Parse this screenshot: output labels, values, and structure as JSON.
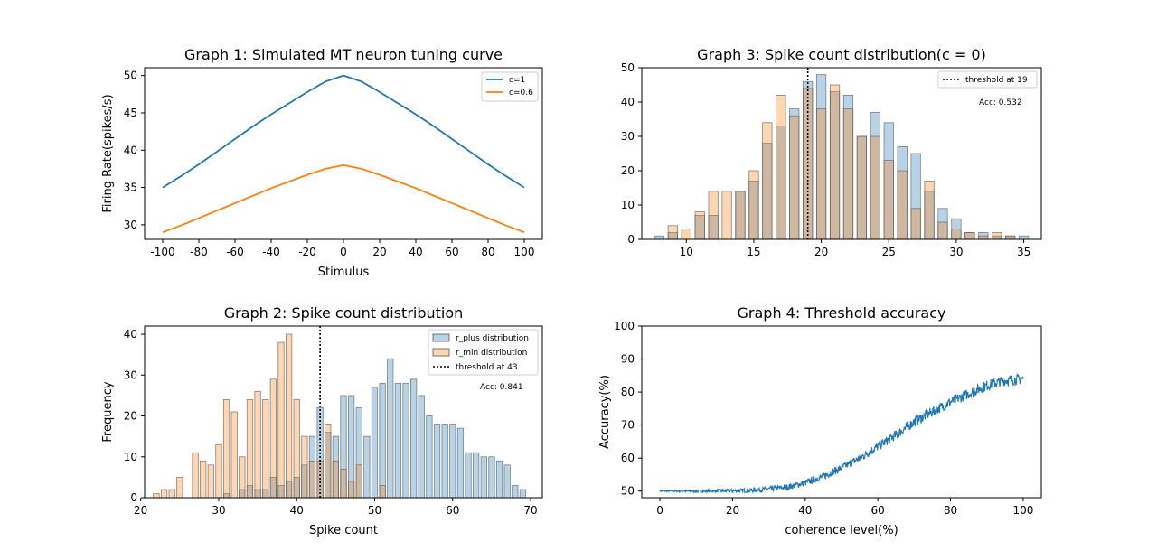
{
  "chart_data": [
    {
      "id": "g1",
      "type": "line",
      "title": "Graph 1: Simulated MT neuron tuning curve",
      "xlabel": "Stimulus",
      "ylabel": "Firing Rate(spikes/s)",
      "xlim": [
        -110,
        110
      ],
      "ylim": [
        28.05,
        51.05
      ],
      "xticks": [
        -100,
        -80,
        -60,
        -40,
        -20,
        0,
        20,
        40,
        60,
        80,
        100
      ],
      "yticks": [
        30,
        35,
        40,
        45,
        50
      ],
      "grid": false,
      "legend_placement": "top-right",
      "series": [
        {
          "name": "c=1",
          "color": "#1f77b4",
          "x": [
            -100,
            -90,
            -80,
            -70,
            -60,
            -50,
            -40,
            -30,
            -20,
            -10,
            0,
            10,
            20,
            30,
            40,
            50,
            60,
            70,
            80,
            90,
            100
          ],
          "y": [
            35.0,
            36.5,
            38.1,
            39.8,
            41.5,
            43.2,
            44.8,
            46.3,
            47.8,
            49.2,
            50.0,
            49.2,
            47.8,
            46.3,
            44.8,
            43.2,
            41.5,
            39.8,
            38.1,
            36.5,
            35.0
          ]
        },
        {
          "name": "c=0.6",
          "color": "#ff7f0e",
          "x": [
            -100,
            -90,
            -80,
            -70,
            -60,
            -50,
            -40,
            -30,
            -20,
            -10,
            0,
            10,
            20,
            30,
            40,
            50,
            60,
            70,
            80,
            90,
            100
          ],
          "y": [
            29.0,
            29.9,
            30.9,
            31.9,
            32.9,
            33.9,
            34.9,
            35.8,
            36.7,
            37.5,
            38.0,
            37.5,
            36.7,
            35.8,
            34.9,
            33.9,
            32.9,
            31.9,
            30.9,
            29.9,
            29.0
          ]
        }
      ]
    },
    {
      "id": "g3",
      "type": "bar",
      "title": "Graph 3: Spike count distribution(c = 0)",
      "xlabel": "",
      "ylabel": "",
      "xlim": [
        6.7,
        36.3
      ],
      "ylim": [
        0,
        50
      ],
      "xticks": [
        10,
        15,
        20,
        25,
        30,
        35
      ],
      "yticks": [
        0,
        10,
        20,
        30,
        40,
        50
      ],
      "bar_width": 0.7,
      "legend_placement": "top-right",
      "threshold": 19,
      "threshold_label": "threshold at 19",
      "accuracy_label": "Acc: 0.532",
      "series": [
        {
          "name": "",
          "color": "#1f77b4",
          "x": [
            8,
            9,
            11,
            12,
            14,
            15,
            16,
            17,
            18,
            19,
            20,
            21,
            22,
            23,
            24,
            25,
            26,
            27,
            28,
            29,
            30,
            31,
            32,
            33,
            34,
            35
          ],
          "y": [
            1,
            2,
            7,
            7,
            14,
            17,
            28,
            33,
            38,
            46,
            48,
            43,
            42,
            30,
            37,
            34,
            27,
            25,
            14,
            9,
            6,
            2,
            2,
            1,
            1,
            1
          ]
        },
        {
          "name": "",
          "color": "#ff7f0e",
          "x": [
            9,
            10,
            11,
            12,
            13,
            14,
            15,
            16,
            17,
            18,
            19,
            20,
            21,
            22,
            23,
            24,
            25,
            26,
            27,
            28,
            29,
            30,
            31,
            32,
            33,
            34
          ],
          "y": [
            4,
            3,
            8,
            14,
            14,
            14,
            20,
            34,
            42,
            36,
            44,
            38,
            45,
            38,
            30,
            30,
            23,
            20,
            9,
            17,
            5,
            3,
            2,
            1,
            2,
            1
          ]
        }
      ]
    },
    {
      "id": "g2",
      "type": "bar",
      "title": "Graph 2: Spike count distribution",
      "xlabel": "Spike count",
      "ylabel": "Frequency",
      "xlim": [
        20.5,
        71.5
      ],
      "ylim": [
        0,
        42
      ],
      "xticks": [
        20,
        30,
        40,
        50,
        60,
        70
      ],
      "yticks": [
        0,
        10,
        20,
        30,
        40
      ],
      "bar_width": 0.75,
      "legend_placement": "top-right",
      "threshold": 43,
      "threshold_label": "threshold at 43",
      "accuracy_label": "Acc: 0.841",
      "series": [
        {
          "name": "r_plus distribution",
          "color": "#1f77b4",
          "x": [
            31,
            33,
            34,
            35,
            36,
            37,
            38,
            39,
            40,
            41,
            42,
            43,
            44,
            45,
            46,
            47,
            48,
            49,
            50,
            51,
            52,
            53,
            54,
            55,
            56,
            57,
            58,
            59,
            60,
            61,
            62,
            63,
            64,
            65,
            66,
            67,
            68,
            69
          ],
          "y": [
            1,
            2,
            3,
            2,
            2,
            5,
            3,
            4,
            5,
            8,
            15,
            22,
            16,
            15,
            25,
            25,
            22,
            15,
            27,
            28,
            34,
            28,
            28,
            29,
            25,
            20,
            18,
            18,
            18,
            17,
            11,
            11,
            10,
            10,
            9,
            8,
            3,
            2
          ]
        },
        {
          "name": "r_min distribution",
          "color": "#ff7f0e",
          "x": [
            22,
            23,
            24,
            25,
            26,
            27,
            28,
            29,
            30,
            31,
            32,
            33,
            34,
            35,
            36,
            37,
            38,
            39,
            40,
            41,
            42,
            43,
            44,
            45,
            46,
            47,
            48,
            49,
            50,
            51
          ],
          "y": [
            1,
            2,
            2,
            5,
            0,
            11,
            9,
            8,
            13,
            24,
            21,
            10,
            24,
            26,
            24,
            29,
            38,
            40,
            24,
            15,
            9,
            9,
            18,
            9,
            7,
            4,
            8,
            0,
            0,
            3
          ]
        }
      ]
    },
    {
      "id": "g4",
      "type": "line",
      "title": "Graph 4: Threshold accuracy",
      "xlabel": "coherence level(%)",
      "ylabel": "Accuracy(%)",
      "xlim": [
        -5,
        105
      ],
      "ylim": [
        48,
        100
      ],
      "xticks": [
        0,
        20,
        40,
        60,
        80,
        100
      ],
      "yticks": [
        50,
        60,
        70,
        80,
        90,
        100
      ],
      "series": [
        {
          "name": "",
          "color": "#1f77b4",
          "x": [
            0,
            10,
            20,
            25,
            30,
            35,
            40,
            45,
            50,
            55,
            60,
            65,
            70,
            75,
            80,
            85,
            90,
            95,
            100
          ],
          "y": [
            50.0,
            50.0,
            50.1,
            50.2,
            50.6,
            51.2,
            52.5,
            54.5,
            57.0,
            60.0,
            63.5,
            67.0,
            71.0,
            74.0,
            77.0,
            79.5,
            82.0,
            83.5,
            84.0
          ]
        }
      ]
    }
  ]
}
